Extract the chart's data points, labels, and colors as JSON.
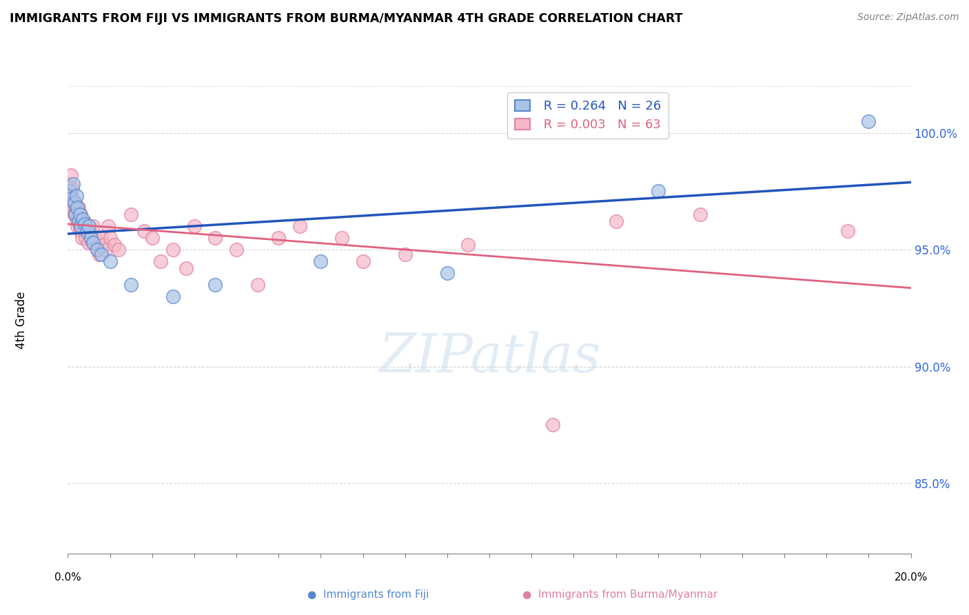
{
  "title": "IMMIGRANTS FROM FIJI VS IMMIGRANTS FROM BURMA/MYANMAR 4TH GRADE CORRELATION CHART",
  "source": "Source: ZipAtlas.com",
  "ylabel": "4th Grade",
  "xlim": [
    0.0,
    20.0
  ],
  "ylim": [
    82.0,
    102.0
  ],
  "yticks": [
    85.0,
    90.0,
    95.0,
    100.0
  ],
  "ytick_labels": [
    "85.0%",
    "90.0%",
    "95.0%",
    "100.0%"
  ],
  "legend_fiji_r": "R = 0.264",
  "legend_fiji_n": "N = 26",
  "legend_burma_r": "R = 0.003",
  "legend_burma_n": "N = 63",
  "fiji_color": "#aac4e8",
  "burma_color": "#f5b8c8",
  "fiji_edge_color": "#5588cc",
  "burma_edge_color": "#e080a0",
  "fiji_line_color": "#2255bb",
  "burma_line_color": "#e06080",
  "watermark": "ZIPatlas",
  "fiji_x": [
    0.05,
    0.08,
    0.12,
    0.15,
    0.18,
    0.2,
    0.22,
    0.25,
    0.28,
    0.3,
    0.35,
    0.4,
    0.45,
    0.5,
    0.55,
    0.6,
    0.7,
    0.8,
    1.0,
    1.5,
    2.5,
    3.5,
    6.0,
    9.0,
    14.0,
    19.0
  ],
  "fiji_y": [
    97.5,
    97.2,
    97.8,
    97.0,
    96.5,
    97.3,
    96.8,
    96.2,
    96.5,
    96.0,
    96.3,
    96.1,
    95.8,
    96.0,
    95.5,
    95.3,
    95.0,
    94.8,
    94.5,
    93.5,
    93.0,
    93.5,
    94.5,
    94.0,
    97.5,
    100.5
  ],
  "burma_x": [
    0.05,
    0.07,
    0.08,
    0.1,
    0.1,
    0.12,
    0.13,
    0.14,
    0.15,
    0.16,
    0.17,
    0.18,
    0.18,
    0.2,
    0.2,
    0.22,
    0.23,
    0.25,
    0.25,
    0.28,
    0.3,
    0.3,
    0.33,
    0.35,
    0.38,
    0.4,
    0.42,
    0.45,
    0.48,
    0.5,
    0.55,
    0.6,
    0.6,
    0.65,
    0.7,
    0.75,
    0.8,
    0.85,
    0.9,
    0.95,
    1.0,
    1.1,
    1.2,
    1.5,
    1.8,
    2.0,
    2.2,
    2.5,
    2.8,
    3.0,
    3.5,
    4.0,
    4.5,
    5.0,
    5.5,
    6.5,
    7.0,
    8.0,
    9.5,
    11.5,
    13.0,
    15.0,
    18.5
  ],
  "burma_y": [
    97.8,
    97.5,
    98.2,
    97.0,
    97.6,
    96.8,
    97.2,
    97.0,
    96.5,
    97.0,
    96.8,
    96.5,
    97.0,
    96.3,
    96.8,
    96.5,
    96.0,
    96.2,
    96.8,
    96.0,
    95.8,
    96.5,
    95.5,
    96.0,
    96.2,
    95.8,
    95.5,
    96.0,
    95.3,
    95.8,
    95.5,
    95.3,
    96.0,
    95.5,
    95.0,
    94.8,
    95.5,
    95.2,
    95.0,
    96.0,
    95.5,
    95.2,
    95.0,
    96.5,
    95.8,
    95.5,
    94.5,
    95.0,
    94.2,
    96.0,
    95.5,
    95.0,
    93.5,
    95.5,
    96.0,
    95.5,
    94.5,
    94.8,
    95.2,
    87.5,
    96.2,
    96.5,
    95.8
  ]
}
